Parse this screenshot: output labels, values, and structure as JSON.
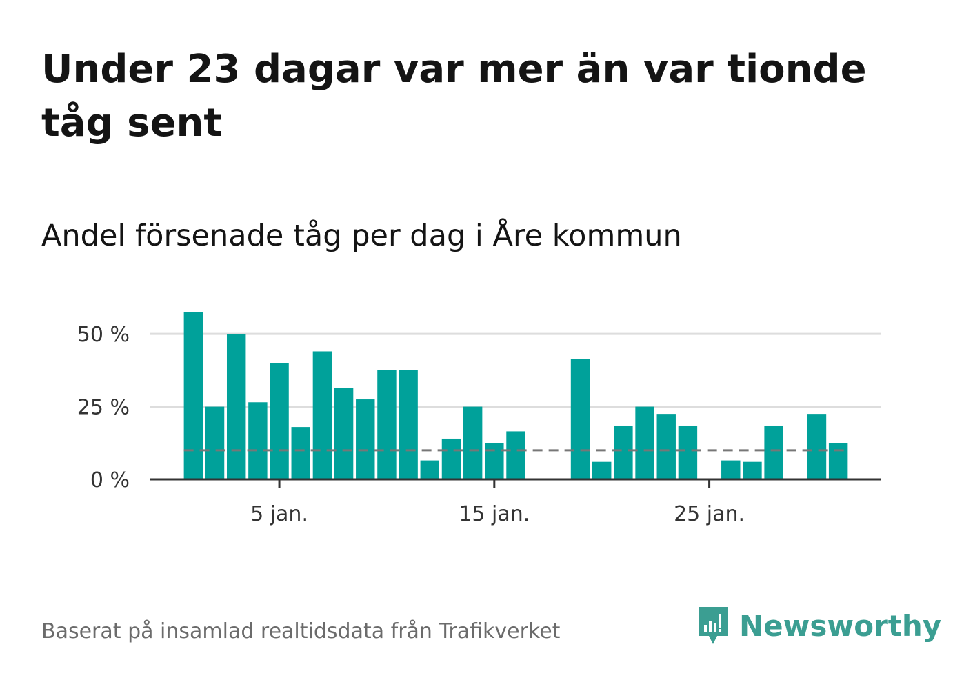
{
  "title": "Under 23 dagar var mer än var tionde tåg sent",
  "subtitle": "Andel försenade tåg per dag i Åre kommun",
  "source": "Baserat på insamlad realtidsdata från Trafikverket",
  "brand": {
    "name": "Newsworthy",
    "icon": "newsworthy-logo-icon",
    "color": "#3b9e92"
  },
  "colors": {
    "bar": "#00a19a",
    "grid": "#dddddd",
    "axis": "#333333",
    "reference": "#777777"
  },
  "chart_data": {
    "type": "bar",
    "x": [
      1,
      2,
      3,
      4,
      5,
      6,
      7,
      8,
      9,
      10,
      11,
      12,
      13,
      14,
      15,
      16,
      17,
      18,
      19,
      20,
      21,
      22,
      23,
      24,
      25,
      26,
      27,
      28,
      29,
      30,
      31
    ],
    "values": [
      57.5,
      25,
      50,
      26.5,
      40,
      18,
      44,
      31.5,
      27.5,
      37.5,
      37.5,
      6.5,
      14,
      25,
      12.5,
      16.5,
      null,
      null,
      41.5,
      6,
      18.5,
      25,
      22.5,
      18.5,
      null,
      6.5,
      6,
      18.5,
      null,
      22.5,
      12.5
    ],
    "reference_line": 10,
    "ylim": [
      0,
      60
    ],
    "yticks": [
      {
        "value": 0,
        "label": "0 %"
      },
      {
        "value": 25,
        "label": "25 %"
      },
      {
        "value": 50,
        "label": "50 %"
      }
    ],
    "xticks": [
      {
        "value": 5,
        "label": "5 jan."
      },
      {
        "value": 15,
        "label": "15 jan."
      },
      {
        "value": 25,
        "label": "25 jan."
      }
    ],
    "xlim": [
      -1,
      33
    ],
    "grid": true,
    "xlabel": "",
    "ylabel": ""
  }
}
